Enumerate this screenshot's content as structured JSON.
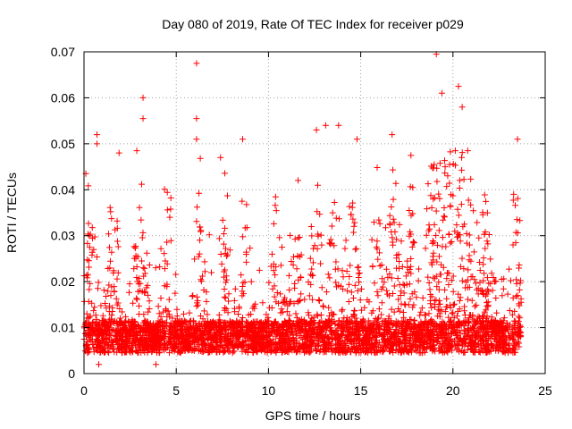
{
  "chart_data": {
    "type": "scatter",
    "title": "Day 080 of 2019, Rate Of TEC Index for receiver p029",
    "xlabel": "GPS time / hours",
    "ylabel": "ROTI / TECUs",
    "xlim": [
      0,
      25
    ],
    "ylim": [
      0,
      0.07
    ],
    "xticks": [
      0,
      5,
      10,
      15,
      20,
      25
    ],
    "xtick_labels": [
      "0",
      "5",
      "10",
      "15",
      "20",
      "25"
    ],
    "yticks": [
      0,
      0.01,
      0.02,
      0.03,
      0.04,
      0.05,
      0.06,
      0.07
    ],
    "ytick_labels": [
      "0",
      "0.01",
      "0.02",
      "0.03",
      "0.04",
      "0.05",
      "0.06",
      "0.07"
    ],
    "grid": true,
    "marker": "+",
    "color": "#ff0000",
    "series": [
      {
        "name": "ROTI",
        "x_range": [
          0,
          23.7
        ],
        "baseline": 0.008,
        "notable_points": [
          {
            "x": 0.1,
            "y": 0.0435
          },
          {
            "x": 0.7,
            "y": 0.052
          },
          {
            "x": 0.7,
            "y": 0.05
          },
          {
            "x": 1.9,
            "y": 0.048
          },
          {
            "x": 3.2,
            "y": 0.06
          },
          {
            "x": 3.2,
            "y": 0.0555
          },
          {
            "x": 6.1,
            "y": 0.0675
          },
          {
            "x": 6.1,
            "y": 0.0555
          },
          {
            "x": 6.1,
            "y": 0.051
          },
          {
            "x": 7.4,
            "y": 0.047
          },
          {
            "x": 8.6,
            "y": 0.051
          },
          {
            "x": 12.6,
            "y": 0.053
          },
          {
            "x": 13.1,
            "y": 0.054
          },
          {
            "x": 13.8,
            "y": 0.054
          },
          {
            "x": 14.8,
            "y": 0.051
          },
          {
            "x": 16.7,
            "y": 0.052
          },
          {
            "x": 19.1,
            "y": 0.0695
          },
          {
            "x": 19.4,
            "y": 0.061
          },
          {
            "x": 20.3,
            "y": 0.0625
          },
          {
            "x": 20.5,
            "y": 0.058
          },
          {
            "x": 23.5,
            "y": 0.051
          },
          {
            "x": 0.8,
            "y": 0.002
          },
          {
            "x": 3.9,
            "y": 0.002
          }
        ]
      }
    ]
  }
}
